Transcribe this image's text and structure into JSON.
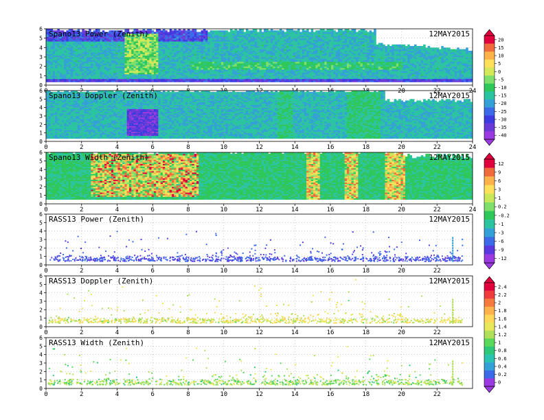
{
  "chart_data": {
    "type": "heatmap",
    "date_label": "12MAY2015",
    "panels": [
      {
        "title": "Spano13 Power (Zenith)",
        "colorbar": 0,
        "style": "dense",
        "x_ticks": [
          "0",
          "2",
          "4",
          "6",
          "8",
          "10",
          "12",
          "14",
          "16",
          "18",
          "20",
          "22",
          "24"
        ],
        "y_ticks": [
          "0",
          "1",
          "2",
          "3",
          "4",
          "5",
          "6"
        ],
        "xlim": [
          0,
          24
        ],
        "ylim": [
          0,
          6
        ],
        "notable_features": [
          {
            "x_range": [
              4.3,
              6.3
            ],
            "description": "enhanced return column"
          }
        ]
      },
      {
        "title": "Spano13 Doppler (Zenith)",
        "colorbar": 0,
        "style": "dense",
        "x_ticks": [
          "0",
          "2",
          "4",
          "6",
          "8",
          "10",
          "12",
          "14",
          "16",
          "18",
          "20",
          "22",
          "24"
        ],
        "y_ticks": [
          "0",
          "1",
          "2",
          "3",
          "4",
          "5",
          "6"
        ],
        "xlim": [
          0,
          24
        ],
        "ylim": [
          0,
          6
        ],
        "notable_features": [
          {
            "x_range": [
              4.5,
              6.3
            ],
            "y_range": [
              0.5,
              3.8
            ],
            "description": "strong negative velocities"
          }
        ]
      },
      {
        "title": "Spano13 Width (Zenith)",
        "colorbar": 1,
        "style": "dense",
        "x_ticks": [
          "0",
          "2",
          "4",
          "6",
          "8",
          "10",
          "12",
          "14",
          "16",
          "18",
          "20",
          "22",
          "24"
        ],
        "y_ticks": [
          "0",
          "1",
          "2",
          "3",
          "4",
          "5",
          "6"
        ],
        "xlim": [
          0,
          24
        ],
        "ylim": [
          0,
          6
        ],
        "notable_features": [
          {
            "x_range": [
              2.5,
              8.5
            ],
            "description": "high spectral width"
          }
        ]
      },
      {
        "title": "RASS13 Power (Zenith)",
        "colorbar": 1,
        "style": "sparse",
        "x_ticks": [
          "0",
          "2",
          "4",
          "6",
          "8",
          "10",
          "12",
          "14",
          "16",
          "18",
          "20",
          "22"
        ],
        "y_ticks": [
          "0",
          "1",
          "2",
          "3",
          "4",
          "5",
          "6"
        ],
        "xlim": [
          0,
          24
        ],
        "ylim": [
          0,
          6
        ]
      },
      {
        "title": "RASS13 Doppler (Zenith)",
        "colorbar": 2,
        "style": "sparse",
        "x_ticks": [
          "0",
          "2",
          "4",
          "6",
          "8",
          "10",
          "12",
          "14",
          "16",
          "18",
          "20",
          "22"
        ],
        "y_ticks": [
          "0",
          "1",
          "2",
          "3",
          "4",
          "5",
          "6"
        ],
        "xlim": [
          0,
          24
        ],
        "ylim": [
          0,
          6
        ]
      },
      {
        "title": "RASS13 Width (Zenith)",
        "colorbar": 2,
        "style": "sparse",
        "x_ticks": [
          "0",
          "2",
          "4",
          "6",
          "8",
          "10",
          "12",
          "14",
          "16",
          "18",
          "20",
          "22"
        ],
        "y_ticks": [
          "0",
          "1",
          "2",
          "3",
          "4",
          "5",
          "6"
        ],
        "xlim": [
          0,
          24
        ],
        "ylim": [
          0,
          6
        ]
      }
    ],
    "colorbars": [
      {
        "labels": [
          "20",
          "15",
          "10",
          "5",
          "0",
          "-5",
          "-10",
          "-15",
          "-20",
          "-25",
          "-30",
          "-35",
          "-40"
        ],
        "colors": [
          "#e0003c",
          "#f06a3c",
          "#ffb24a",
          "#ffe05a",
          "#d4e85a",
          "#7ee06a",
          "#2ec85a",
          "#2bc4a0",
          "#34a0d8",
          "#3c6ae8",
          "#3c3ae0",
          "#6a3ad8",
          "#9a3ae0"
        ]
      },
      {
        "labels": [
          "12",
          "9",
          "6",
          "3",
          "1",
          "0.2",
          "-0.2",
          "-1",
          "-3",
          "-6",
          "-9",
          "-12"
        ],
        "colors": [
          "#e0003c",
          "#f06a3c",
          "#ffb24a",
          "#ffe05a",
          "#c8e85a",
          "#7ee06a",
          "#2ec85a",
          "#2bc4a0",
          "#34a0d8",
          "#3c6ae8",
          "#5a3ae0",
          "#9a3ae0"
        ]
      },
      {
        "labels": [
          "2.4",
          "2.2",
          "2",
          "1.8",
          "1.6",
          "1.4",
          "1.2",
          "1",
          "0.8",
          "0.6",
          "0.4",
          "0.2",
          "0"
        ],
        "colors": [
          "#e0003c",
          "#f03c3c",
          "#f57a3c",
          "#ffb24a",
          "#ffd85a",
          "#e8e85a",
          "#b0e05a",
          "#5ad85a",
          "#2ec87a",
          "#2bc4b0",
          "#34a0d8",
          "#3c6ae8",
          "#9a3ae0"
        ]
      }
    ]
  }
}
